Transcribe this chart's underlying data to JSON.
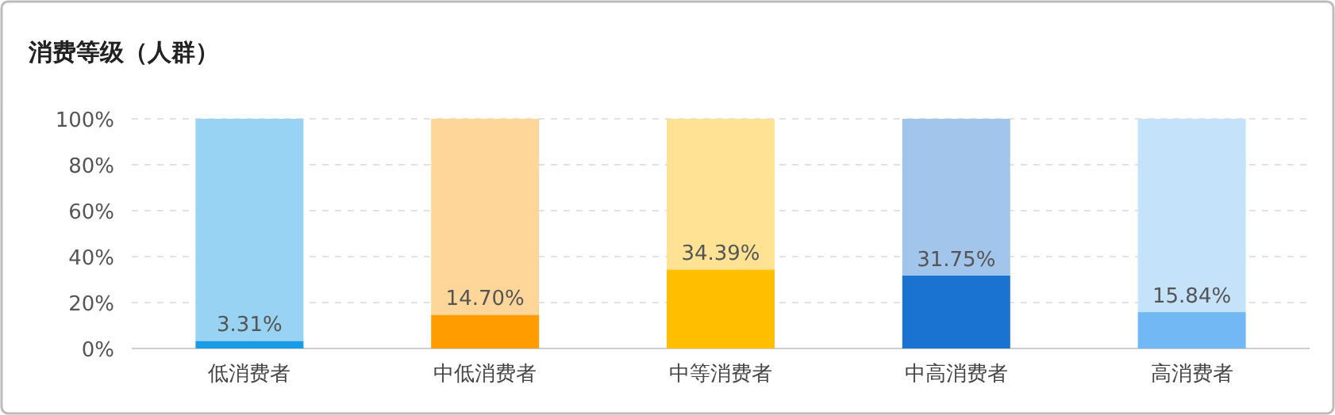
{
  "chart_data": {
    "type": "bar",
    "title": "消费等级（人群）",
    "stacked": true,
    "categories": [
      "低消费者",
      "中低消费者",
      "中等消费者",
      "中高消费者",
      "高消费者"
    ],
    "series": [
      {
        "colors": [
          "#1a9be6",
          "#ff9c00",
          "#ffbf00",
          "#1a73d1",
          "#72b8f5"
        ],
        "values": [
          3.31,
          14.7,
          34.39,
          31.75,
          15.84
        ],
        "value_labels": [
          "3.31%",
          "14.70%",
          "34.39%",
          "31.75%",
          "15.84%"
        ]
      },
      {
        "colors": [
          "#98d3f3",
          "#ffd699",
          "#ffe293",
          "#a2c5ec",
          "#c5e2fb"
        ],
        "values": [
          96.69,
          85.3,
          65.61,
          68.25,
          84.16
        ]
      }
    ],
    "ylim": [
      0,
      100
    ],
    "yticks": [
      {
        "value": 0,
        "label": "0%"
      },
      {
        "value": 20,
        "label": "20%"
      },
      {
        "value": 40,
        "label": "40%"
      },
      {
        "value": 60,
        "label": "60%"
      },
      {
        "value": 80,
        "label": "80%"
      },
      {
        "value": 100,
        "label": "100%"
      }
    ],
    "grid": "y"
  }
}
